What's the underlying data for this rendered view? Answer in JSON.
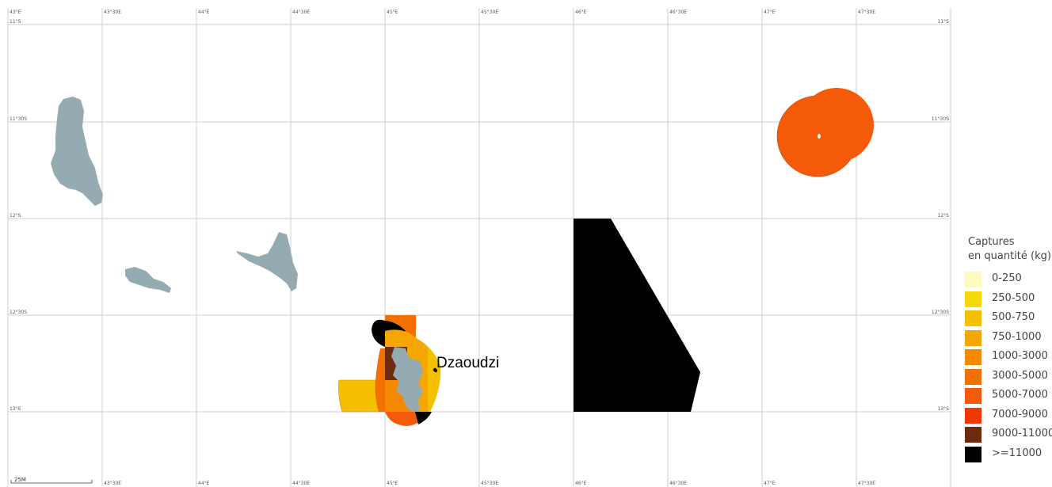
{
  "map": {
    "lon_labels_top": [
      "43°E",
      "43°30E",
      "44°E",
      "44°30E",
      "45°E",
      "45°30E",
      "46°E",
      "46°30E",
      "47°E",
      "47°30E"
    ],
    "lon_labels_bottom": [
      "43°30E",
      "44°E",
      "44°30E",
      "45°E",
      "45°30E",
      "46°E",
      "46°30E",
      "47°E",
      "47°30E"
    ],
    "lat_labels": [
      "11°S",
      "11°30S",
      "12°S",
      "12°30S",
      "13°S"
    ],
    "city": {
      "name": "Dzaoudzi"
    },
    "scale_bar": {
      "label": "25M"
    },
    "land_color": "#94acb1",
    "grid_color": "#cfcfcf"
  },
  "legend": {
    "title_line1": "Captures",
    "title_line2": "en quantité (kg)",
    "classes": [
      {
        "label": "0-250",
        "color": "#fffbc0"
      },
      {
        "label": "250-500",
        "color": "#f7d80a"
      },
      {
        "label": "500-750",
        "color": "#f5c000"
      },
      {
        "label": "750-1000",
        "color": "#f5a600"
      },
      {
        "label": "1000-3000",
        "color": "#f58a00"
      },
      {
        "label": "3000-5000",
        "color": "#f27000"
      },
      {
        "label": "5000-7000",
        "color": "#f55a08"
      },
      {
        "label": "7000-9000",
        "color": "#f23800"
      },
      {
        "label": "9000-11000",
        "color": "#6e2a0e"
      },
      {
        "label": ">=11000",
        "color": "#000000"
      }
    ]
  }
}
